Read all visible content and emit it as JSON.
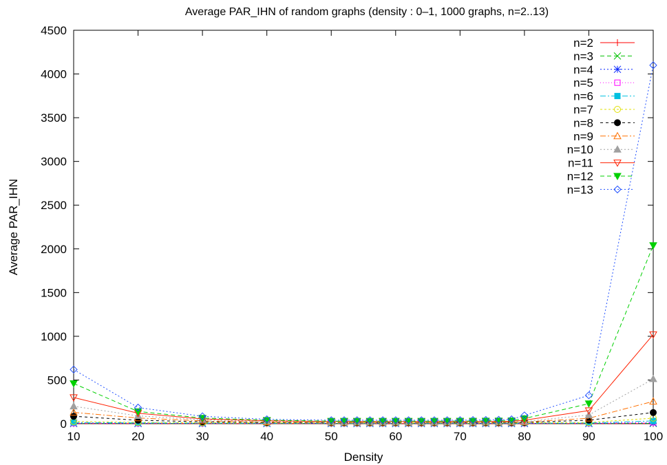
{
  "chart_data": {
    "type": "line",
    "title": "Average PAR_IHN of random graphs (density : 0–1, 1000 graphs, n=2..13)",
    "xlabel": "Density",
    "ylabel": "Average PAR_IHN",
    "xlim": [
      10,
      100
    ],
    "ylim": [
      0,
      4500
    ],
    "xticks": [
      10,
      20,
      30,
      40,
      50,
      60,
      70,
      80,
      90,
      100
    ],
    "yticks": [
      0,
      500,
      1000,
      1500,
      2000,
      2500,
      3000,
      3500,
      4000,
      4500
    ],
    "grid": false,
    "legend_position": "top-right",
    "x": [
      10,
      20,
      30,
      40,
      50,
      52,
      54,
      56,
      58,
      60,
      62,
      64,
      66,
      68,
      70,
      72,
      74,
      76,
      78,
      80,
      90,
      100
    ],
    "series": [
      {
        "name": "n=2",
        "color": "#ff0000",
        "marker": "plus",
        "dash": "",
        "values": [
          2,
          2,
          2,
          2,
          2,
          2,
          2,
          2,
          2,
          2,
          2,
          2,
          2,
          2,
          2,
          2,
          2,
          2,
          2,
          2,
          2,
          2
        ]
      },
      {
        "name": "n=3",
        "color": "#00c000",
        "marker": "cross",
        "dash": "6,4",
        "values": [
          3,
          3,
          3,
          3,
          3,
          3,
          3,
          3,
          3,
          3,
          3,
          3,
          3,
          3,
          3,
          3,
          3,
          3,
          3,
          3,
          3,
          4
        ]
      },
      {
        "name": "n=4",
        "color": "#0020ff",
        "marker": "star",
        "dash": "2,3",
        "values": [
          5,
          4,
          4,
          4,
          4,
          4,
          4,
          4,
          4,
          4,
          4,
          4,
          4,
          4,
          4,
          4,
          4,
          4,
          4,
          4,
          4,
          8
        ]
      },
      {
        "name": "n=5",
        "color": "#ff00ff",
        "marker": "open-square",
        "dash": "1,3",
        "values": [
          8,
          6,
          5,
          5,
          5,
          5,
          5,
          5,
          5,
          5,
          5,
          5,
          5,
          5,
          5,
          5,
          5,
          5,
          5,
          5,
          6,
          16
        ]
      },
      {
        "name": "n=6",
        "color": "#00c0e0",
        "marker": "filled-square",
        "dash": "8,3,2,3",
        "values": [
          14,
          10,
          8,
          7,
          7,
          7,
          7,
          7,
          7,
          7,
          7,
          7,
          7,
          7,
          7,
          7,
          7,
          7,
          7,
          8,
          9,
          32
        ]
      },
      {
        "name": "n=7",
        "color": "#e0e000",
        "marker": "open-circle",
        "dash": "3,3",
        "values": [
          25,
          16,
          12,
          10,
          10,
          10,
          10,
          10,
          10,
          10,
          10,
          10,
          10,
          10,
          10,
          10,
          10,
          10,
          11,
          11,
          14,
          64
        ]
      },
      {
        "name": "n=8",
        "color": "#000000",
        "marker": "filled-circle",
        "dash": "4,4",
        "values": [
          85,
          40,
          22,
          15,
          13,
          13,
          13,
          13,
          13,
          13,
          13,
          13,
          13,
          13,
          13,
          13,
          14,
          14,
          14,
          15,
          40,
          128
        ]
      },
      {
        "name": "n=9",
        "color": "#ff7000",
        "marker": "open-triangle",
        "dash": "8,3,2,3",
        "values": [
          130,
          65,
          32,
          20,
          16,
          16,
          16,
          16,
          16,
          16,
          16,
          16,
          16,
          16,
          16,
          16,
          17,
          17,
          17,
          20,
          62,
          256
        ]
      },
      {
        "name": "n=10",
        "color": "#a0a0a0",
        "marker": "filled-triangle",
        "dash": "2,3",
        "values": [
          200,
          90,
          45,
          28,
          20,
          20,
          20,
          20,
          20,
          20,
          20,
          20,
          20,
          20,
          20,
          20,
          21,
          21,
          22,
          25,
          100,
          512
        ]
      },
      {
        "name": "n=11",
        "color": "#ff2000",
        "marker": "open-inverted-triangle",
        "dash": "",
        "values": [
          300,
          120,
          55,
          35,
          25,
          25,
          25,
          25,
          25,
          25,
          25,
          25,
          25,
          25,
          25,
          25,
          26,
          27,
          28,
          40,
          150,
          1020
        ]
      },
      {
        "name": "n=12",
        "color": "#00d000",
        "marker": "filled-inverted-triangle",
        "dash": "6,4",
        "values": [
          460,
          140,
          65,
          40,
          30,
          30,
          30,
          30,
          30,
          30,
          30,
          30,
          30,
          30,
          31,
          31,
          32,
          33,
          35,
          60,
          230,
          2040
        ]
      },
      {
        "name": "n=13",
        "color": "#2050ff",
        "marker": "open-diamond",
        "dash": "2,3",
        "values": [
          620,
          185,
          85,
          50,
          40,
          40,
          40,
          40,
          40,
          40,
          40,
          40,
          40,
          40,
          41,
          42,
          43,
          45,
          50,
          95,
          325,
          4100
        ]
      }
    ]
  }
}
